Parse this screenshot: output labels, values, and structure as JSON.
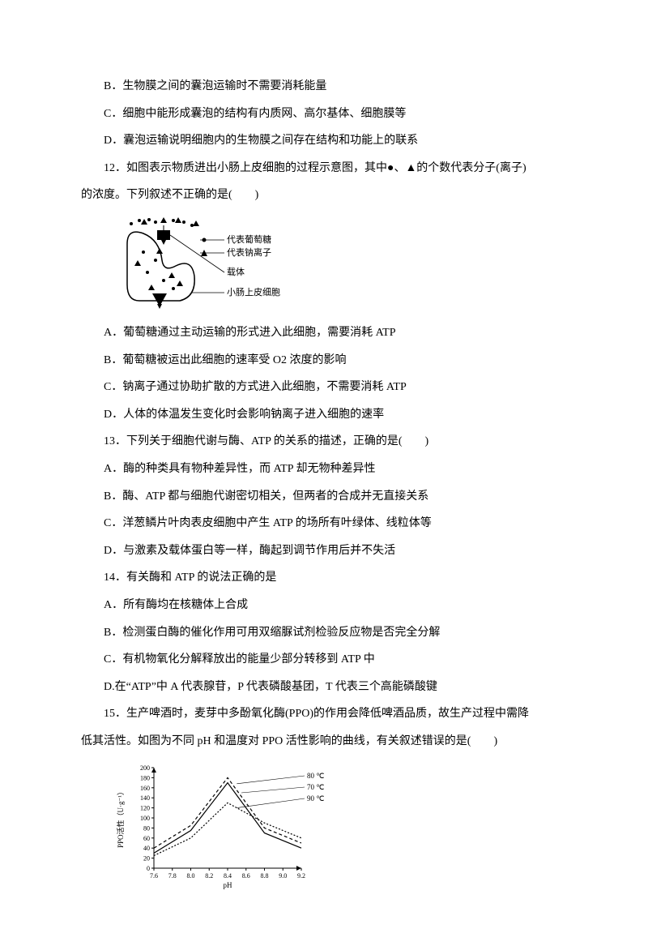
{
  "q11": {
    "optB": "B．生物膜之间的囊泡运输时不需要消耗能量",
    "optC": "C．细胞中能形成囊泡的结构有内质网、高尔基体、细胞膜等",
    "optD": "D．囊泡运输说明细胞内的生物膜之间存在结构和功能上的联系"
  },
  "q12": {
    "stem_a": "12．如图表示物质进出小肠上皮细胞的过程示意图，其中●、▲的个数代表分子(离子)",
    "stem_b": "的浓度。下列叙述不正确的是(　　)",
    "optA": "A．葡萄糖通过主动运输的形式进入此细胞，需要消耗 ATP",
    "optB": "B．葡萄糖被运出此细胞的速率受 O2 浓度的影响",
    "optC": "C．钠离子通过协助扩散的方式进入此细胞，不需要消耗 ATP",
    "optD": "D．人体的体温发生变化时会影响钠离子进入细胞的速率",
    "fig": {
      "legend_glucose": "代表葡萄糖",
      "legend_na": "代表钠离子",
      "legend_carrier": "载体",
      "legend_cell": "小肠上皮细胞",
      "colors": {
        "stroke": "#000000",
        "fill_black": "#000000"
      }
    }
  },
  "q13": {
    "stem": "13．下列关于细胞代谢与酶、ATP 的关系的描述，正确的是(　　)",
    "optA": "A．酶的种类具有物种差异性，而 ATP 却无物种差异性",
    "optB": "B．酶、ATP 都与细胞代谢密切相关，但两者的合成并无直接关系",
    "optC": "C．洋葱鳞片叶肉表皮细胞中产生 ATP 的场所有叶绿体、线粒体等",
    "optD": "D．与激素及载体蛋白等一样，酶起到调节作用后并不失活"
  },
  "q14": {
    "stem": "14．有关酶和 ATP 的说法正确的是",
    "optA": "A．所有酶均在核糖体上合成",
    "optB": "B．检测蛋白酶的催化作用可用双缩脲试剂检验反应物是否完全分解",
    "optC": "C．有机物氧化分解释放出的能量少部分转移到 ATP 中",
    "optD": "D.在“ATP”中 A 代表腺苷，P 代表磷酸基团，T 代表三个高能磷酸键"
  },
  "q15": {
    "stem_a": "15．生产啤酒时，麦芽中多酚氧化酶(PPO)的作用会降低啤酒品质，故生产过程中需降",
    "stem_b": "低其活性。如图为不同 pH 和温度对 PPO 活性影响的曲线，有关叙述错误的是(　　)",
    "fig": {
      "ylabel": "PPO活性（U·g⁻¹）",
      "xlabel": "pH",
      "xticks": [
        "7.6",
        "7.8",
        "8.0",
        "8.2",
        "8.4",
        "8.6",
        "8.8",
        "9.0",
        "9.2"
      ],
      "yticks": [
        "0",
        "20",
        "40",
        "60",
        "80",
        "100",
        "120",
        "140",
        "160",
        "180",
        "200"
      ],
      "ylim": [
        0,
        200
      ],
      "xlim": [
        7.6,
        9.2
      ],
      "legend": [
        "80 ℃",
        "70 ℃",
        "90 ℃"
      ],
      "series": {
        "c70": {
          "dash": "4,3",
          "pts": [
            [
              7.6,
              40
            ],
            [
              8.0,
              85
            ],
            [
              8.4,
              180
            ],
            [
              8.8,
              80
            ],
            [
              9.2,
              50
            ]
          ]
        },
        "c80": {
          "dash": "none",
          "pts": [
            [
              7.6,
              30
            ],
            [
              8.0,
              75
            ],
            [
              8.4,
              170
            ],
            [
              8.8,
              70
            ],
            [
              9.2,
              40
            ]
          ]
        },
        "c90": {
          "dash": "2,2",
          "pts": [
            [
              7.6,
              25
            ],
            [
              8.0,
              60
            ],
            [
              8.4,
              130
            ],
            [
              8.8,
              90
            ],
            [
              9.2,
              60
            ]
          ]
        }
      },
      "colors": {
        "axis": "#000000",
        "line": "#000000"
      }
    }
  }
}
